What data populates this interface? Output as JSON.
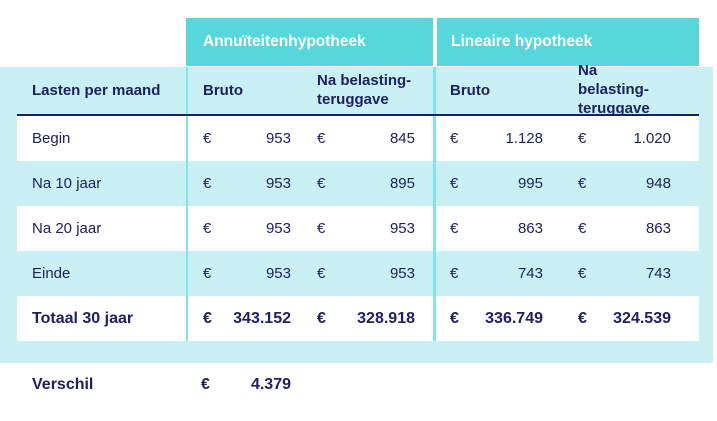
{
  "currency": "€",
  "colors": {
    "turquoise_header": "#57d7dc",
    "light_cyan_panel": "#c9f1f5",
    "navy_text": "#1d2163",
    "row_divider": "#85e2e7",
    "white_row": "#ffffff"
  },
  "table": {
    "group_headers": {
      "annuiteiten": "Annuïteitenhypotheek",
      "lineair": "Lineaire hypotheek"
    },
    "column_headers": {
      "label": "Lasten per maand",
      "bruto": "Bruto",
      "na_belasting": "Na belasting-teruggave"
    },
    "rows": [
      {
        "label": "Begin",
        "values": [
          "953",
          "845",
          "1.128",
          "1.020"
        ]
      },
      {
        "label": "Na 10 jaar",
        "values": [
          "953",
          "895",
          "995",
          "948"
        ]
      },
      {
        "label": "Na 20 jaar",
        "values": [
          "953",
          "953",
          "863",
          "863"
        ]
      },
      {
        "label": "Einde",
        "values": [
          "953",
          "953",
          "743",
          "743"
        ]
      },
      {
        "label": "Totaal 30 jaar",
        "values": [
          "343.152",
          "328.918",
          "336.749",
          "324.539"
        ]
      }
    ],
    "footer": {
      "label": "Verschil",
      "value": "4.379"
    }
  },
  "chart_data": {
    "type": "table",
    "title": "Lasten per maand",
    "column_groups": [
      "Annuïteitenhypotheek",
      "Lineaire hypotheek"
    ],
    "columns": [
      "Lasten per maand",
      "Annuïteitenhypotheek Bruto",
      "Annuïteitenhypotheek Na belasting-teruggave",
      "Lineaire hypotheek Bruto",
      "Lineaire hypotheek Na belasting-teruggave"
    ],
    "rows": [
      {
        "label": "Begin",
        "values": [
          953,
          845,
          1128,
          1020
        ]
      },
      {
        "label": "Na 10 jaar",
        "values": [
          953,
          895,
          995,
          948
        ]
      },
      {
        "label": "Na 20 jaar",
        "values": [
          953,
          953,
          863,
          863
        ]
      },
      {
        "label": "Einde",
        "values": [
          953,
          953,
          743,
          743
        ]
      },
      {
        "label": "Totaal 30 jaar",
        "values": [
          343152,
          328918,
          336749,
          324539
        ]
      }
    ],
    "footer": {
      "label": "Verschil",
      "value": 4379
    },
    "currency": "EUR",
    "layout": {
      "striped_rows": true,
      "group_header_color": "#57d7dc",
      "panel_color": "#c9f1f5"
    }
  }
}
